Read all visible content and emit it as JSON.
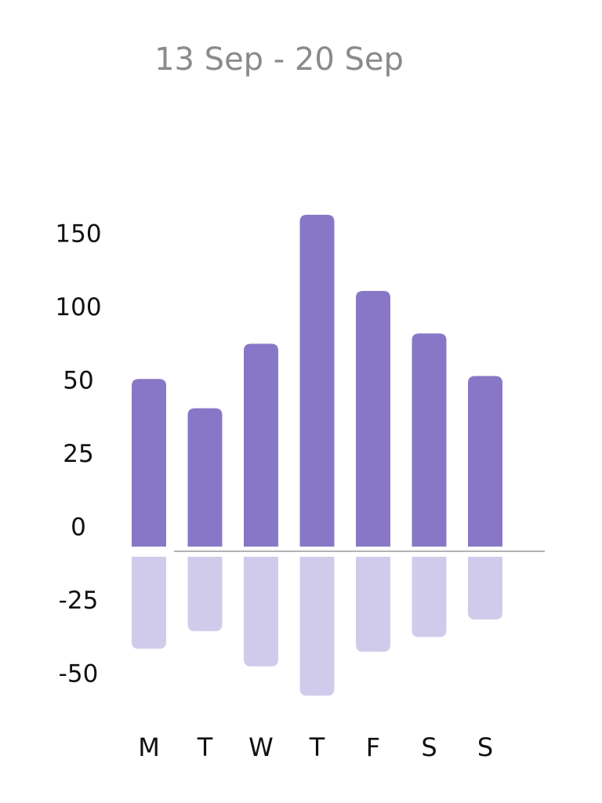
{
  "chart_data": {
    "type": "bar",
    "title": "13 Sep - 20 Sep",
    "categories": [
      "M",
      "T",
      "W",
      "T",
      "F",
      "S",
      "S"
    ],
    "series": [
      {
        "color": "#8877c6",
        "values": [
          52,
          41,
          76,
          164,
          112,
          83,
          54
        ]
      },
      {
        "color": "#d1cbeb",
        "values": [
          -41,
          -35,
          -47,
          -57,
          -42,
          -37,
          -31
        ]
      }
    ],
    "yticks": [
      150,
      100,
      50,
      25,
      0,
      -25,
      -50
    ]
  }
}
